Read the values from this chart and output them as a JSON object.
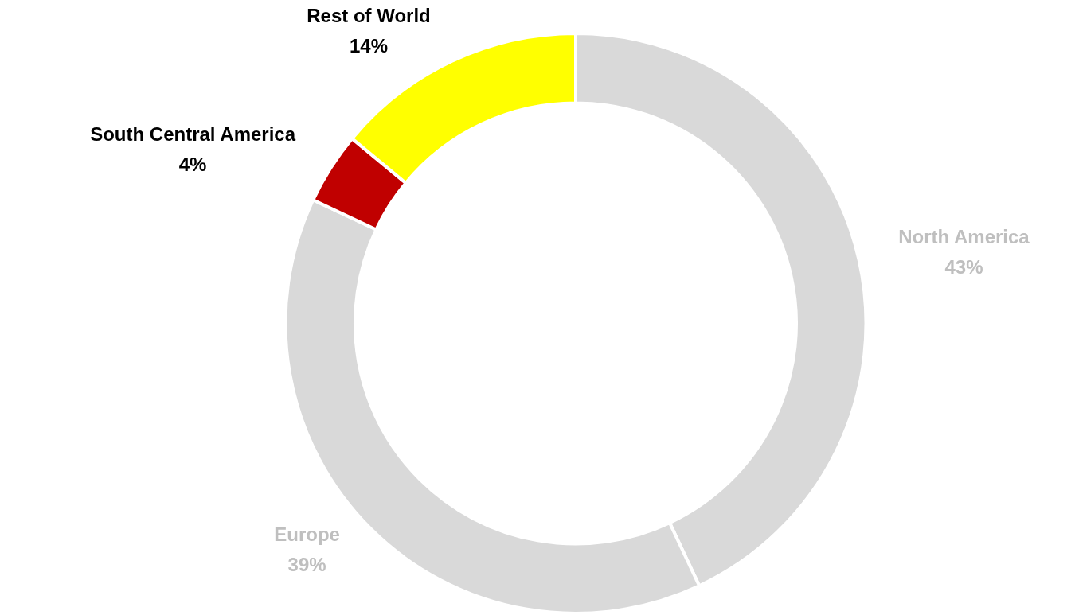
{
  "chart_data": {
    "type": "donut",
    "categories": [
      "North America",
      "Europe",
      "South Central America",
      "Rest of World"
    ],
    "values": [
      43,
      39,
      4,
      14
    ],
    "colors": [
      "#d9d9d9",
      "#d9d9d9",
      "#c00000",
      "#ffff00"
    ],
    "value_labels": [
      "43%",
      "39%",
      "4%",
      "14%"
    ],
    "legend": false
  }
}
